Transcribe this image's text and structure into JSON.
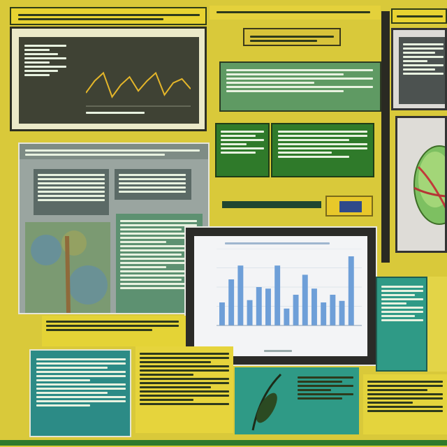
{
  "colors": {
    "background": "#d9c93a",
    "yellow": "#e8d331",
    "dark_green": "#2f7a2a",
    "teal": "#2f9a86",
    "grey": "#9aa5a0",
    "chart_bar": "#6e9fd8",
    "line_series": "#e4b62a"
  },
  "chart_data": [
    {
      "type": "line",
      "series": [
        {
          "values": [
            42,
            48,
            52,
            40,
            46,
            50,
            43,
            48,
            52,
            41,
            47,
            49,
            44
          ]
        }
      ],
      "grid": false
    },
    {
      "type": "bar",
      "values": [
        30,
        60,
        78,
        33,
        50,
        48,
        78,
        22,
        40,
        66,
        48,
        30,
        40,
        32,
        90
      ],
      "grid": true
    }
  ]
}
